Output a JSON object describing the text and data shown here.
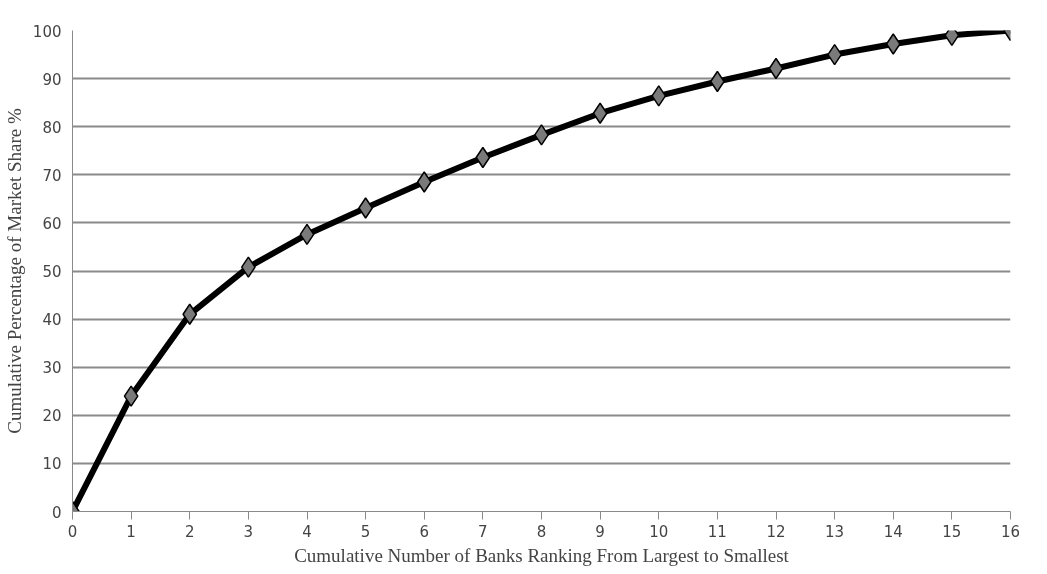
{
  "chart_data": {
    "type": "line",
    "xlabel": "Cumulative Number of Banks Ranking From Largest to Smallest",
    "ylabel": "Cumulative Percentage of Market Share %",
    "x": [
      0,
      1,
      2,
      3,
      4,
      5,
      6,
      7,
      8,
      9,
      10,
      11,
      12,
      13,
      14,
      15,
      16
    ],
    "series": [
      {
        "color": "#000000",
        "values": [
          0,
          24,
          41,
          50.8,
          57.6,
          63.1,
          68.5,
          73.6,
          78.3,
          82.8,
          86.4,
          89.4,
          92.1,
          95,
          97.2,
          99,
          100
        ]
      }
    ],
    "xlim": [
      0,
      16
    ],
    "ylim": [
      0,
      100
    ],
    "xticks": [
      0,
      1,
      2,
      3,
      4,
      5,
      6,
      7,
      8,
      9,
      10,
      11,
      12,
      13,
      14,
      15,
      16
    ],
    "yticks": [
      0,
      10,
      20,
      30,
      40,
      50,
      60,
      70,
      80,
      90,
      100
    ],
    "grid": "y",
    "marker": "diamond",
    "line_style": "solid"
  }
}
